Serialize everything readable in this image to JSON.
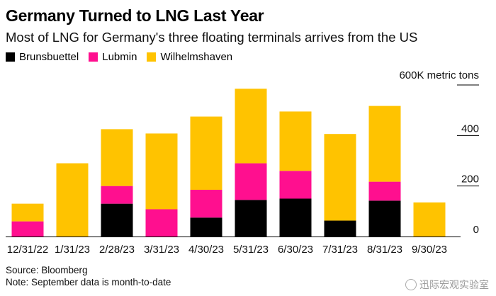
{
  "chart_data": {
    "type": "bar",
    "stacked": true,
    "title": "Germany Turned to LNG Last Year",
    "subtitle": "Most of LNG for Germany's three floating terminals arrives from the US",
    "ylabel": "",
    "unit_label": "600K metric tons",
    "y_ticks": [
      "0",
      "200",
      "400"
    ],
    "ylim": [
      0,
      600
    ],
    "categories": [
      "12/31/22",
      "1/31/23",
      "2/28/23",
      "3/31/23",
      "4/30/23",
      "5/31/23",
      "6/30/23",
      "7/31/23",
      "8/31/23",
      "9/30/23"
    ],
    "series": [
      {
        "name": "Brunsbuettel",
        "color": "#000000",
        "values": [
          0,
          0,
          130,
          0,
          75,
          145,
          150,
          63,
          142,
          0
        ]
      },
      {
        "name": "Lubmin",
        "color": "#ff0f8f",
        "values": [
          60,
          0,
          70,
          108,
          110,
          145,
          110,
          0,
          75,
          0
        ]
      },
      {
        "name": "Wilhelmshaven",
        "color": "#ffc300",
        "values": [
          70,
          290,
          225,
          300,
          290,
          295,
          235,
          343,
          300,
          135
        ]
      }
    ],
    "legend_position": "top-left",
    "grid": false
  },
  "footer": {
    "source": "Source: Bloomberg",
    "note": "Note: September data is month-to-date"
  },
  "watermark": {
    "text": "迅际宏观实验室",
    "icon": "weibo-icon"
  }
}
